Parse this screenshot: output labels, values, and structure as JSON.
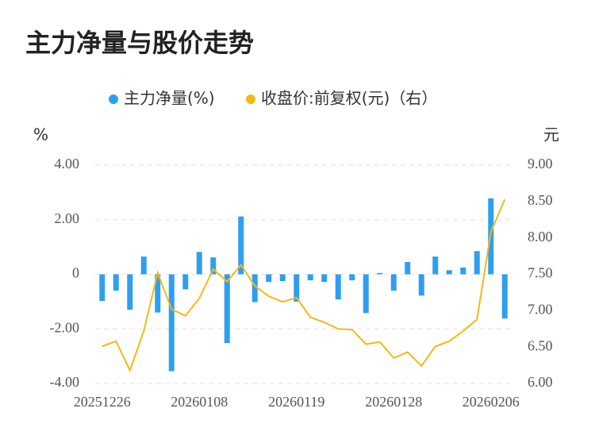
{
  "chart_data": {
    "type": "bar-line",
    "title": "主力净量与股价走势",
    "y_label": "%",
    "y2_label": "元",
    "categories": [
      "20251226",
      null,
      null,
      null,
      null,
      null,
      null,
      "20260108",
      null,
      null,
      null,
      null,
      null,
      null,
      "20260119",
      null,
      null,
      null,
      null,
      null,
      null,
      "20260128",
      null,
      null,
      null,
      null,
      null,
      null,
      "20260206",
      null
    ],
    "series": [
      {
        "name": "主力净量(%)",
        "type": "bar",
        "color": "#2e9ff0",
        "axis": "y",
        "values": [
          -0.98,
          -0.6,
          -1.3,
          0.65,
          -1.4,
          -3.55,
          -0.55,
          0.82,
          0.62,
          -2.52,
          2.12,
          -1.02,
          -0.28,
          -0.25,
          -1.0,
          -0.22,
          -0.28,
          -0.92,
          -0.22,
          -1.42,
          0.05,
          -0.6,
          0.45,
          -0.78,
          0.65,
          0.15,
          0.25,
          0.85,
          2.78,
          -1.62
        ]
      },
      {
        "name": "收盘价:前复权(元)（右）",
        "type": "line",
        "color": "#f5b914",
        "axis": "y2",
        "values": [
          6.51,
          6.58,
          6.18,
          6.72,
          7.52,
          7.02,
          6.93,
          7.17,
          7.57,
          7.4,
          7.63,
          7.34,
          7.2,
          7.12,
          7.18,
          6.91,
          6.84,
          6.75,
          6.74,
          6.54,
          6.57,
          6.35,
          6.43,
          6.24,
          6.51,
          6.58,
          6.72,
          6.88,
          8.08,
          8.53
        ]
      }
    ],
    "ylim": [
      -4,
      4
    ],
    "yticks": [
      {
        "value": 4,
        "label": "4.00"
      },
      {
        "value": 2,
        "label": "2.00"
      },
      0,
      {
        "value": -2,
        "label": "-2.00"
      },
      {
        "value": -4,
        "label": "-4.00"
      }
    ],
    "y2lim": [
      6,
      9
    ],
    "y2ticks": [
      {
        "value": 9,
        "label": "9.00"
      },
      {
        "value": 8.5,
        "label": "8.50"
      },
      {
        "value": 8,
        "label": "8.00"
      },
      {
        "value": 7.5,
        "label": "7.50"
      },
      {
        "value": 7,
        "label": "7.00"
      },
      {
        "value": 6.5,
        "label": "6.50"
      },
      {
        "value": 6,
        "label": "6.00"
      }
    ],
    "grid": true
  }
}
